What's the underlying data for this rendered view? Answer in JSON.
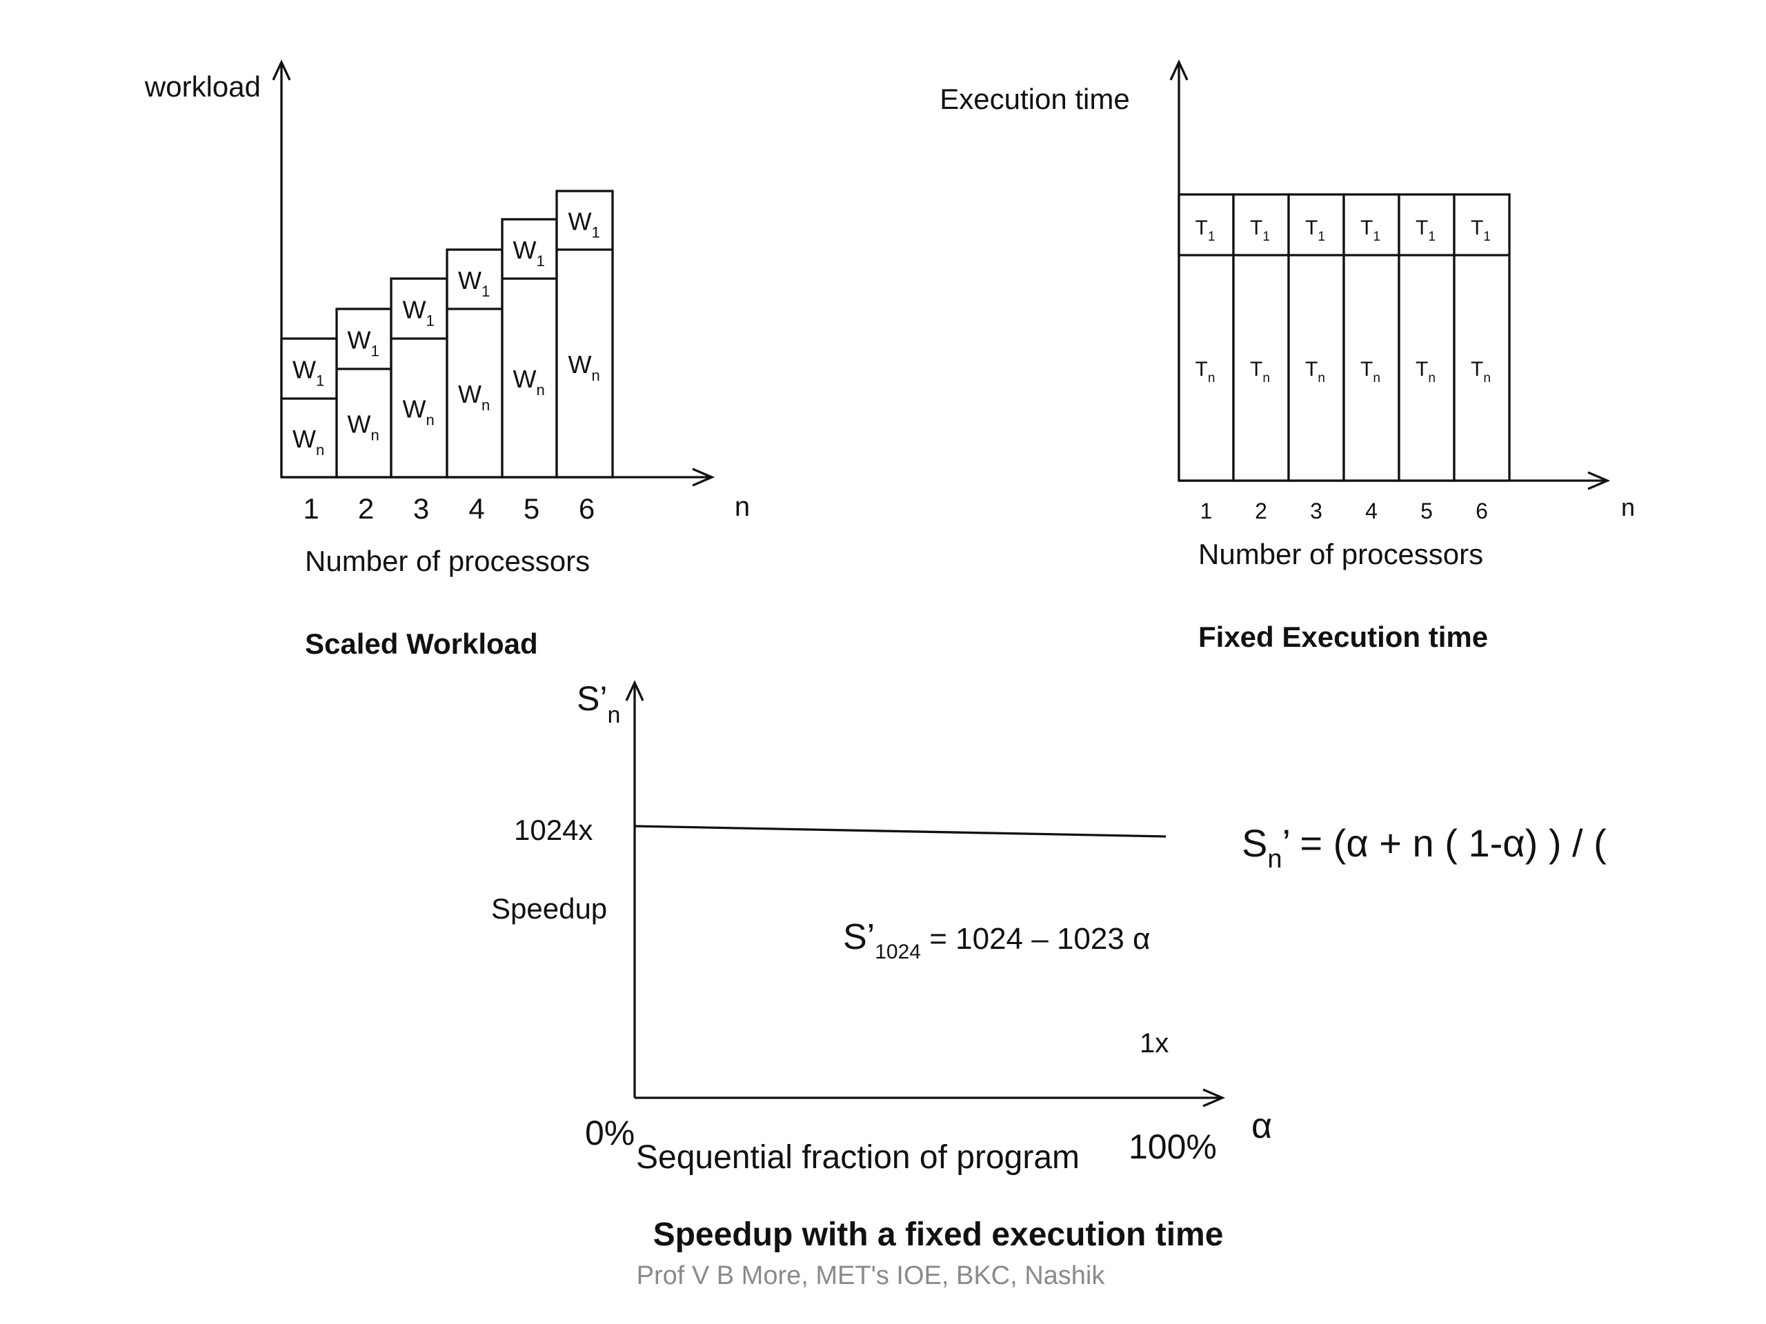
{
  "scaled_workload": {
    "y_axis_label": "workload",
    "x_axis_symbol": "n",
    "x_axis_label": "Number of processors",
    "caption": "Scaled Workload",
    "ticks": [
      "1",
      "2",
      "3",
      "4",
      "5",
      "6"
    ],
    "top_label": "W",
    "top_sub": "1",
    "bottom_label": "W",
    "bottom_sub": "n"
  },
  "fixed_time": {
    "y_axis_label": "Execution time",
    "x_axis_symbol": "n",
    "x_axis_label": "Number of processors",
    "caption": "Fixed Execution time",
    "ticks": [
      "1",
      "2",
      "3",
      "4",
      "5",
      "6"
    ],
    "top_label": "T",
    "top_sub": "1",
    "bottom_label": "T",
    "bottom_sub": "n"
  },
  "speedup": {
    "y_symbol": "S’",
    "y_symbol_sub": "n",
    "y_tick": "1024x",
    "y_label": "Speedup",
    "x_start": "0%",
    "x_end": "100%",
    "x_label": "Sequential fraction of program",
    "x_symbol": "α",
    "point_label": "1x",
    "caption": "Speedup with a fixed execution time",
    "eq1_s": "S",
    "eq1_sub": "n",
    "eq1_rest": "’ = (α + n ( 1-α) ) / (",
    "eq2_s": "S’",
    "eq2_sub": "1024",
    "eq2_rest": " = 1024 – 1023 α"
  },
  "footer": "Prof V B More, MET's IOE, BKC, Nashik"
}
